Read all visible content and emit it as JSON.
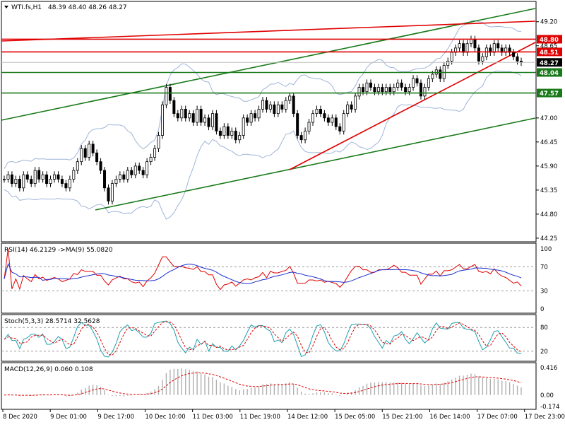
{
  "chart_data": {
    "type": "candlestick",
    "symbol_label": "WTI.fs,H1",
    "ohlc_header": "48.39 48.40 48.26 48.27",
    "last_price": "48.27",
    "price_axis": {
      "ylim": [
        44.2,
        49.6
      ],
      "ticks": [
        "49.20",
        "48.65",
        "47.00",
        "46.45",
        "45.90",
        "45.35",
        "44.80",
        "44.25"
      ]
    },
    "time_axis": [
      "8 Dec 2020",
      "9 Dec 01:00",
      "9 Dec 17:00",
      "10 Dec 10:00",
      "11 Dec 03:00",
      "11 Dec 19:00",
      "14 Dec 12:00",
      "15 Dec 05:00",
      "15 Dec 21:00",
      "16 Dec 14:00",
      "17 Dec 07:00",
      "17 Dec 23:00"
    ],
    "horizontal_levels": [
      {
        "label": "48.80",
        "value": 48.8,
        "color": "#e00000"
      },
      {
        "label": "48.51",
        "value": 48.51,
        "color": "#e00000"
      },
      {
        "label": "48.04",
        "value": 48.04,
        "color": "#1a7a1a"
      },
      {
        "label": "47.57",
        "value": 47.57,
        "color": "#1a7a1a"
      }
    ],
    "candles_close": [
      45.6,
      45.7,
      45.5,
      45.6,
      45.4,
      45.7,
      45.6,
      45.5,
      45.8,
      45.6,
      45.7,
      45.5,
      45.6,
      45.7,
      45.6,
      45.5,
      45.4,
      45.6,
      45.8,
      46.0,
      46.3,
      46.1,
      46.4,
      46.2,
      46.0,
      45.8,
      45.4,
      45.1,
      45.5,
      45.6,
      45.7,
      45.6,
      45.8,
      45.7,
      45.9,
      45.8,
      45.7,
      46.0,
      46.1,
      46.3,
      46.6,
      47.3,
      47.7,
      47.4,
      47.1,
      47.0,
      47.2,
      47.0,
      47.1,
      46.9,
      47.2,
      46.9,
      47.0,
      46.8,
      47.1,
      46.7,
      46.6,
      46.8,
      46.6,
      46.7,
      46.5,
      46.6,
      47.0,
      46.9,
      47.1,
      47.0,
      47.2,
      47.4,
      47.2,
      47.3,
      47.1,
      47.3,
      47.2,
      47.4,
      47.5,
      47.1,
      46.6,
      46.5,
      46.7,
      46.9,
      47.1,
      47.2,
      47.1,
      47.0,
      46.9,
      47.0,
      46.8,
      46.7,
      47.1,
      47.3,
      47.2,
      47.5,
      47.7,
      47.6,
      47.8,
      47.7,
      47.6,
      47.7,
      47.6,
      47.7,
      47.6,
      47.7,
      47.8,
      47.7,
      47.6,
      47.7,
      47.9,
      47.8,
      47.5,
      47.7,
      47.9,
      48.0,
      48.1,
      47.9,
      48.2,
      48.3,
      48.5,
      48.6,
      48.7,
      48.5,
      48.7,
      48.8,
      48.6,
      48.3,
      48.4,
      48.6,
      48.5,
      48.7,
      48.6,
      48.5,
      48.6,
      48.5,
      48.4,
      48.3,
      48.27
    ],
    "rsi": {
      "label": "RSI(14) 46.2129 ->MA(9) 55.0820",
      "ylim": [
        0,
        100
      ],
      "ticks": [
        "100",
        "70",
        "30",
        "0"
      ],
      "levels": [
        70,
        30
      ]
    },
    "stochastic": {
      "label": "Stoch(5,3,3) 28.5714 32.5628",
      "ylim": [
        0,
        100
      ],
      "ticks": [
        "80",
        "20"
      ],
      "levels": [
        80,
        20
      ]
    },
    "macd": {
      "label": "MACD(12,26,9) 0.060 0.108",
      "ylim": [
        -0.174,
        0.416
      ],
      "ticks": [
        "0.416",
        "0.00",
        "-0.174"
      ]
    }
  }
}
